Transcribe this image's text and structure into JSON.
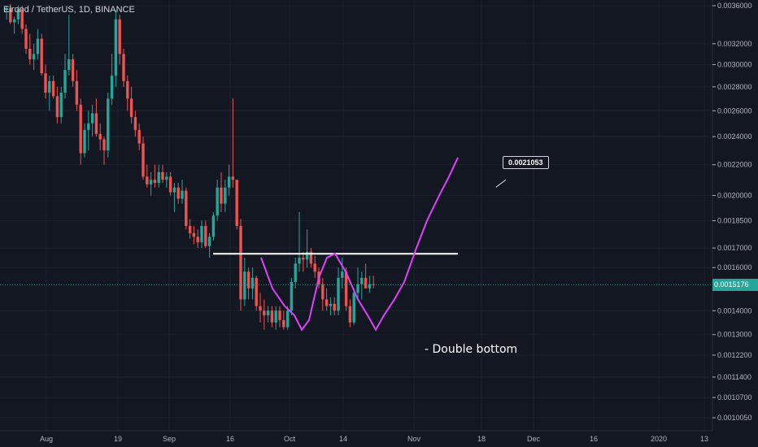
{
  "header": {
    "symbol_title": "Elrond / TetherUS, 1D, BINANCE"
  },
  "current_price": {
    "label": "0.0015176",
    "value": 0.0015176,
    "color": "#26a69a"
  },
  "callout": {
    "label": "0.0021053",
    "value": 0.0021053
  },
  "annotation": {
    "text": "- Double bottom"
  },
  "colors": {
    "up": "#26a69a",
    "down": "#ef5350",
    "pattern": "#e040fb",
    "background": "#131722",
    "grid": "#1e222d",
    "axis_text": "#b2b5be",
    "level_line": "#ffffff"
  },
  "chart_data": {
    "type": "candlestick",
    "x_axis": {
      "tick_labels": [
        "Aug",
        "19",
        "Sep",
        "16",
        "Oct",
        "14",
        "Nov",
        "18",
        "Dec",
        "16",
        "2020",
        "13"
      ]
    },
    "y_axis": {
      "scale": "log",
      "tick_labels": [
        "0.0036000",
        "0.0032000",
        "0.0030000",
        "0.0028000",
        "0.0026000",
        "0.0024000",
        "0.0022000",
        "0.0020000",
        "0.0018500",
        "0.0017000",
        "0.0016000",
        "0.0014000",
        "0.0013000",
        "0.0012200",
        "0.0011400",
        "0.0010700",
        "0.0010050"
      ],
      "tick_values": [
        0.0036,
        0.0032,
        0.003,
        0.0028,
        0.0026,
        0.0024,
        0.0022,
        0.002,
        0.00185,
        0.0017,
        0.0016,
        0.0014,
        0.0013,
        0.00122,
        0.00114,
        0.00107,
        0.001005
      ]
    },
    "candles_ohlc": [
      [
        0.00355,
        0.0036,
        0.00345,
        0.00357
      ],
      [
        0.00357,
        0.00362,
        0.0034,
        0.00342
      ],
      [
        0.00342,
        0.00348,
        0.0033,
        0.00345
      ],
      [
        0.00345,
        0.0036,
        0.0034,
        0.00356
      ],
      [
        0.00356,
        0.0036,
        0.0033,
        0.00335
      ],
      [
        0.00335,
        0.0034,
        0.0031,
        0.00315
      ],
      [
        0.00315,
        0.0033,
        0.003,
        0.00305
      ],
      [
        0.00305,
        0.0032,
        0.00295,
        0.0031
      ],
      [
        0.0031,
        0.00335,
        0.00305,
        0.00325
      ],
      [
        0.00325,
        0.0033,
        0.0029,
        0.00292
      ],
      [
        0.00292,
        0.003,
        0.0027,
        0.00275
      ],
      [
        0.00275,
        0.0029,
        0.0026,
        0.00285
      ],
      [
        0.00285,
        0.0029,
        0.0027,
        0.00272
      ],
      [
        0.00272,
        0.0028,
        0.0025,
        0.00255
      ],
      [
        0.00255,
        0.0028,
        0.0025,
        0.00275
      ],
      [
        0.00275,
        0.0031,
        0.0027,
        0.00295
      ],
      [
        0.00295,
        0.0035,
        0.0029,
        0.00305
      ],
      [
        0.00305,
        0.0031,
        0.0028,
        0.00285
      ],
      [
        0.00285,
        0.00295,
        0.0026,
        0.00265
      ],
      [
        0.00265,
        0.0027,
        0.0022,
        0.00228
      ],
      [
        0.00228,
        0.0025,
        0.00225,
        0.00245
      ],
      [
        0.00245,
        0.0026,
        0.0023,
        0.0025
      ],
      [
        0.0025,
        0.00265,
        0.0024,
        0.00258
      ],
      [
        0.00258,
        0.0027,
        0.0024,
        0.00242
      ],
      [
        0.00242,
        0.0025,
        0.0023,
        0.00238
      ],
      [
        0.00238,
        0.0024,
        0.0022,
        0.0023
      ],
      [
        0.0023,
        0.00275,
        0.00225,
        0.0027
      ],
      [
        0.0027,
        0.0031,
        0.00265,
        0.0029
      ],
      [
        0.0029,
        0.00355,
        0.0028,
        0.00345
      ],
      [
        0.00345,
        0.0035,
        0.003,
        0.0031
      ],
      [
        0.0031,
        0.00315,
        0.0028,
        0.00285
      ],
      [
        0.00285,
        0.0029,
        0.0026,
        0.0027
      ],
      [
        0.0027,
        0.0028,
        0.0025,
        0.00255
      ],
      [
        0.00255,
        0.0026,
        0.0024,
        0.00245
      ],
      [
        0.00245,
        0.0025,
        0.0023,
        0.00235
      ],
      [
        0.00235,
        0.0024,
        0.0021,
        0.00212
      ],
      [
        0.00212,
        0.0022,
        0.00205,
        0.00207
      ],
      [
        0.00207,
        0.00215,
        0.002,
        0.0021
      ],
      [
        0.0021,
        0.0022,
        0.00205,
        0.00208
      ],
      [
        0.00208,
        0.0022,
        0.00205,
        0.00215
      ],
      [
        0.00215,
        0.0022,
        0.00208,
        0.0021
      ],
      [
        0.0021,
        0.00215,
        0.00205,
        0.00212
      ],
      [
        0.00212,
        0.00215,
        0.002,
        0.00202
      ],
      [
        0.00202,
        0.00208,
        0.0019,
        0.00205
      ],
      [
        0.00205,
        0.00208,
        0.00195,
        0.00198
      ],
      [
        0.00198,
        0.0021,
        0.00195,
        0.00203
      ],
      [
        0.00203,
        0.00205,
        0.0018,
        0.00182
      ],
      [
        0.00182,
        0.00186,
        0.00175,
        0.00178
      ],
      [
        0.00178,
        0.00182,
        0.00172,
        0.00176
      ],
      [
        0.00176,
        0.0018,
        0.0017,
        0.00173
      ],
      [
        0.00173,
        0.00185,
        0.0017,
        0.00182
      ],
      [
        0.00182,
        0.00185,
        0.0017,
        0.00171
      ],
      [
        0.00171,
        0.00178,
        0.00165,
        0.00176
      ],
      [
        0.00176,
        0.0019,
        0.00174,
        0.00188
      ],
      [
        0.00188,
        0.0021,
        0.00185,
        0.00205
      ],
      [
        0.00205,
        0.00215,
        0.0019,
        0.00195
      ],
      [
        0.00195,
        0.0021,
        0.0019,
        0.00205
      ],
      [
        0.00205,
        0.0022,
        0.002,
        0.00212
      ],
      [
        0.00212,
        0.0027,
        0.00205,
        0.0021
      ],
      [
        0.0021,
        0.0021,
        0.0018,
        0.00182
      ],
      [
        0.00182,
        0.00186,
        0.0014,
        0.00145
      ],
      [
        0.00145,
        0.00165,
        0.00142,
        0.00158
      ],
      [
        0.00158,
        0.0016,
        0.00145,
        0.0015
      ],
      [
        0.0015,
        0.0016,
        0.00145,
        0.00155
      ],
      [
        0.00155,
        0.00156,
        0.0014,
        0.00142
      ],
      [
        0.00142,
        0.00148,
        0.00135,
        0.0014
      ],
      [
        0.0014,
        0.00145,
        0.00132,
        0.00138
      ],
      [
        0.00138,
        0.00142,
        0.00135,
        0.0014
      ],
      [
        0.0014,
        0.00142,
        0.00133,
        0.00135
      ],
      [
        0.00135,
        0.00142,
        0.00132,
        0.0014
      ],
      [
        0.0014,
        0.00142,
        0.00133,
        0.00136
      ],
      [
        0.00136,
        0.0014,
        0.00132,
        0.00133
      ],
      [
        0.00133,
        0.00142,
        0.00132,
        0.0014
      ],
      [
        0.0014,
        0.00155,
        0.00138,
        0.00153
      ],
      [
        0.00153,
        0.00165,
        0.0015,
        0.00162
      ],
      [
        0.00162,
        0.0019,
        0.00158,
        0.00165
      ],
      [
        0.00165,
        0.00168,
        0.00158,
        0.00164
      ],
      [
        0.00164,
        0.0018,
        0.0016,
        0.00168
      ],
      [
        0.00168,
        0.0017,
        0.0016,
        0.00162
      ],
      [
        0.00162,
        0.00166,
        0.00155,
        0.00158
      ],
      [
        0.00158,
        0.0016,
        0.0015,
        0.00152
      ],
      [
        0.00152,
        0.00155,
        0.0014,
        0.00145
      ],
      [
        0.00145,
        0.0015,
        0.0014,
        0.00142
      ],
      [
        0.00142,
        0.00146,
        0.00138,
        0.00143
      ],
      [
        0.00143,
        0.00146,
        0.00138,
        0.0014
      ],
      [
        0.0014,
        0.0016,
        0.00138,
        0.00155
      ],
      [
        0.00155,
        0.00165,
        0.0015,
        0.00158
      ],
      [
        0.00158,
        0.0016,
        0.0014,
        0.00142
      ],
      [
        0.00142,
        0.00145,
        0.00133,
        0.00135
      ],
      [
        0.00135,
        0.0015,
        0.00134,
        0.00148
      ],
      [
        0.00148,
        0.0016,
        0.00145,
        0.00152
      ],
      [
        0.00152,
        0.00158,
        0.00145,
        0.00155
      ],
      [
        0.00155,
        0.00162,
        0.0015,
        0.0015
      ],
      [
        0.0015,
        0.00156,
        0.00148,
        0.00152
      ],
      [
        0.00152,
        0.00156,
        0.0015,
        0.00151776
      ]
    ],
    "overlays": {
      "resistance_line": {
        "value": 0.00167
      },
      "current_price_line": {
        "value": 0.0015176
      }
    }
  }
}
